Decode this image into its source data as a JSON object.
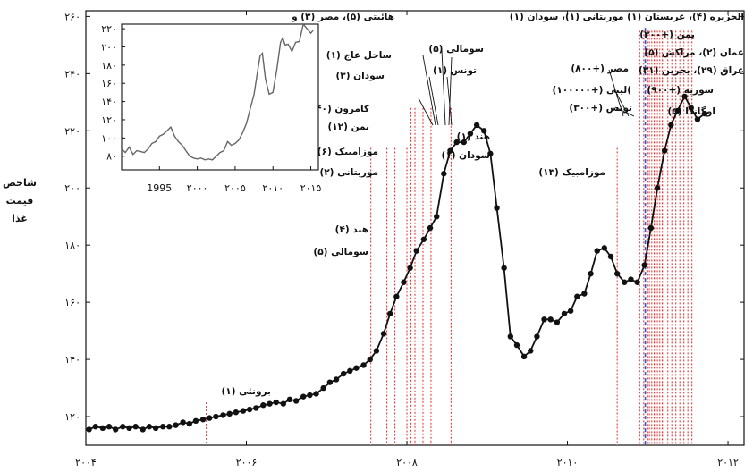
{
  "chart_data": [
    {
      "type": "line",
      "title": "",
      "xlabel": "",
      "ylabel": "شاخص قیمت غذا",
      "ylabel_lines": [
        "شاخص",
        "قیمت",
        "غذا"
      ],
      "xlim": [
        2004.0,
        2012.2
      ],
      "ylim": [
        110,
        262
      ],
      "x_ticks": [
        2004,
        2006,
        2008,
        2010,
        2012
      ],
      "x_tick_labels": [
        "۲۰۰۴",
        "۲۰۰۶",
        "۲۰۰۸",
        "۲۰۱۰",
        "۲۰۱۲"
      ],
      "y_ticks": [
        120,
        140,
        160,
        180,
        200,
        220,
        240,
        260
      ],
      "y_tick_labels": [
        "۱۲۰",
        "۱۴۰",
        "۱۶۰",
        "۱۸۰",
        "۲۰۰",
        "۲۲۰",
        "۲۴۰",
        "۲۶۰"
      ],
      "grid": false,
      "marker": "circle",
      "series": [
        {
          "x": [
            2004.04,
            2004.12,
            2004.21,
            2004.29,
            2004.37,
            2004.46,
            2004.54,
            2004.62,
            2004.71,
            2004.79,
            2004.87,
            2004.96,
            2005.04,
            2005.12,
            2005.21,
            2005.29,
            2005.37,
            2005.46,
            2005.54,
            2005.62,
            2005.71,
            2005.79,
            2005.87,
            2005.96,
            2006.04,
            2006.12,
            2006.21,
            2006.29,
            2006.37,
            2006.46,
            2006.54,
            2006.62,
            2006.71,
            2006.79,
            2006.87,
            2006.96,
            2007.04,
            2007.12,
            2007.21,
            2007.29,
            2007.37,
            2007.46,
            2007.54,
            2007.62,
            2007.71,
            2007.79,
            2007.87,
            2007.96,
            2008.04,
            2008.12,
            2008.21,
            2008.29,
            2008.37,
            2008.46,
            2008.54,
            2008.62,
            2008.71,
            2008.79,
            2008.87,
            2008.96,
            2009.04,
            2009.12,
            2009.21,
            2009.29,
            2009.37,
            2009.46,
            2009.54,
            2009.62,
            2009.71,
            2009.79,
            2009.87,
            2009.96,
            2010.04,
            2010.12,
            2010.21,
            2010.29,
            2010.37,
            2010.46,
            2010.54,
            2010.62,
            2010.71,
            2010.79,
            2010.87,
            2010.96,
            2011.04,
            2011.12,
            2011.21,
            2011.29,
            2011.37,
            2011.46,
            2011.54,
            2011.62,
            2011.71
          ],
          "y": [
            115.5,
            116.5,
            116,
            116.5,
            115.5,
            116.5,
            116,
            116.5,
            115.5,
            116.5,
            116,
            116.5,
            116.5,
            117,
            118,
            117.5,
            118.5,
            119,
            119.5,
            120,
            120.5,
            121,
            121.5,
            122,
            122.5,
            123,
            124,
            124.5,
            125,
            124.5,
            126,
            125.5,
            127,
            127.5,
            128,
            130,
            132,
            133,
            135,
            136,
            137,
            138,
            140,
            143,
            149,
            156,
            162,
            167,
            172,
            178,
            182,
            186,
            190,
            205,
            213,
            216,
            216,
            219,
            222,
            220,
            212,
            193,
            172,
            148,
            145,
            141,
            143,
            148,
            154,
            154,
            153,
            156,
            157,
            162,
            163,
            170,
            178,
            179,
            176,
            170,
            167,
            168,
            167,
            173,
            186,
            200,
            213,
            222,
            227,
            232,
            228,
            224,
            226
          ]
        }
      ],
      "annotations": [
        {
          "label": "برونئی (۱)"
        },
        {
          "label": "هند (۴)"
        },
        {
          "label": "سومالی (۵)"
        },
        {
          "label": "موزامبیک (۶)"
        },
        {
          "label": "موریتانی (۲)"
        },
        {
          "label": "کامرون (۴۰)"
        },
        {
          "label": "یمن (۱۲)"
        },
        {
          "label": "سودان (۳)"
        },
        {
          "label": "ساحل عاج (۱)"
        },
        {
          "label": "هائیتی (۵)، مصر (۳) و"
        },
        {
          "label": "سومالی (۵)"
        },
        {
          "label": "تونس (۱)"
        },
        {
          "label": "هند (۱)"
        },
        {
          "label": "سودان (۱)"
        },
        {
          "label": "موزامبیک (۱۳)"
        },
        {
          "label": "مصر (+۸۰۰)"
        },
        {
          "label": "لیبی (+۱۰۰۰۰۰)("
        },
        {
          "label": "تونس (+۳۰۰)"
        },
        {
          "label": "الجزیره (۴)، عربستان (۱) موریتانی (۱)، سودان (۱)"
        },
        {
          "label": "یمن (+۳۰۰)"
        },
        {
          "label": "عمان (۲)، مراکش (۵)"
        },
        {
          "label": "عراق (۲۹)، بحرین (۳۱)"
        },
        {
          "label": "سوریه (+۹۰۰)"
        },
        {
          "label": "اوگاندا (۵)"
        }
      ],
      "event_lines": [
        2005.5,
        2007.55,
        2007.75,
        2007.85,
        2008.0,
        2008.05,
        2008.1,
        2008.15,
        2008.2,
        2008.3,
        2008.55,
        2010.62,
        2010.9,
        2010.95,
        2011.0,
        2011.02,
        2011.05,
        2011.08,
        2011.1,
        2011.12,
        2011.15,
        2011.18,
        2011.2,
        2011.25,
        2011.3,
        2011.35,
        2011.4,
        2011.45,
        2011.5,
        2011.55
      ]
    },
    {
      "type": "line",
      "title": "",
      "xlim": [
        1990,
        2016
      ],
      "ylim": [
        65,
        225
      ],
      "x_ticks": [
        1995,
        2000,
        2005,
        2010,
        2015
      ],
      "x_tick_labels": [
        "1995",
        "۲۰۰۰",
        "۲۰۰۵",
        "۲۰۱۰",
        "۲۰۱۵"
      ],
      "y_ticks": [
        80,
        100,
        120,
        140,
        160,
        180,
        200,
        220
      ],
      "y_tick_labels": [
        "۸۰",
        "۱۰۰",
        "۱۲۰",
        "۱۴۰",
        "۱۶۰",
        "۱۸۰",
        "۲۰۰",
        "۲۲۰"
      ],
      "series": [
        {
          "x": [
            1990,
            1990.5,
            1991,
            1991.5,
            1992,
            1992.5,
            1993,
            1993.5,
            1994,
            1994.5,
            1995,
            1995.5,
            1996,
            1996.5,
            1997,
            1997.5,
            1998,
            1998.5,
            1999,
            1999.5,
            2000,
            2000.5,
            2001,
            2001.5,
            2002,
            2002.5,
            2003,
            2003.5,
            2004,
            2004.5,
            2005,
            2005.5,
            2006,
            2006.5,
            2007,
            2007.5,
            2008,
            2008.3,
            2008.6,
            2009,
            2009.5,
            2010,
            2010.5,
            2011,
            2011.3,
            2011.6,
            2012,
            2012.5,
            2013,
            2013.5,
            2014,
            2014.5,
            2015,
            2015.3
          ],
          "y": [
            88,
            84,
            90,
            82,
            86,
            85,
            84,
            88,
            94,
            96,
            102,
            104,
            108,
            112,
            102,
            96,
            92,
            86,
            80,
            78,
            77,
            78,
            76,
            77,
            76,
            80,
            84,
            86,
            96,
            92,
            94,
            98,
            106,
            116,
            132,
            148,
            175,
            190,
            193,
            165,
            148,
            150,
            175,
            205,
            210,
            202,
            203,
            195,
            205,
            206,
            225,
            220,
            215,
            218
          ]
        }
      ]
    }
  ]
}
